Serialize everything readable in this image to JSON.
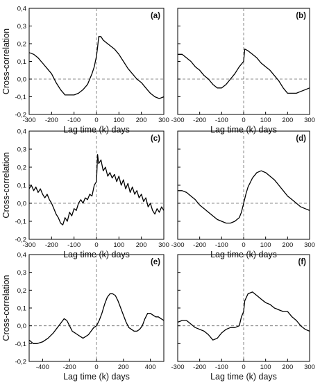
{
  "chart_data": [
    {
      "type": "line",
      "panel_label": "(a)",
      "ylabel": "Cross-correlation",
      "xlabel": "Lag time (k) days",
      "xlim": [
        -300,
        300
      ],
      "ylim": [
        -0.2,
        0.4
      ],
      "xticks": [
        "-300",
        "-200",
        "-100",
        "0",
        "100",
        "200",
        "300"
      ],
      "yticks": [
        "-0,2",
        "-0,1",
        "0,0",
        "0,1",
        "0,2",
        "0,3",
        "0,4"
      ],
      "reference_lines": {
        "x": 0,
        "y": 0,
        "style": "dashed"
      },
      "x": [
        -300,
        -280,
        -260,
        -240,
        -220,
        -200,
        -180,
        -160,
        -140,
        -120,
        -100,
        -80,
        -60,
        -40,
        -20,
        -10,
        0,
        5,
        10,
        20,
        30,
        40,
        60,
        80,
        100,
        120,
        140,
        160,
        180,
        200,
        220,
        240,
        260,
        280,
        300
      ],
      "y": [
        0.15,
        0.14,
        0.12,
        0.09,
        0.06,
        0.03,
        -0.02,
        -0.06,
        -0.09,
        -0.09,
        -0.09,
        -0.08,
        -0.06,
        -0.03,
        0.03,
        0.07,
        0.13,
        0.18,
        0.24,
        0.24,
        0.22,
        0.21,
        0.19,
        0.17,
        0.14,
        0.1,
        0.06,
        0.03,
        0.0,
        -0.02,
        -0.05,
        -0.08,
        -0.1,
        -0.11,
        -0.1
      ]
    },
    {
      "type": "line",
      "panel_label": "(b)",
      "ylabel": "",
      "xlabel": "Lag time (k) days",
      "xlim": [
        -300,
        300
      ],
      "ylim": [
        -0.2,
        0.4
      ],
      "xticks": [
        "-300",
        "-200",
        "-100",
        "0",
        "100",
        "200",
        "300"
      ],
      "yticks": [],
      "reference_lines": {
        "x": 0,
        "y": 0,
        "style": "dashed"
      },
      "x": [
        -300,
        -280,
        -260,
        -240,
        -220,
        -200,
        -180,
        -160,
        -140,
        -120,
        -100,
        -80,
        -60,
        -40,
        -20,
        0,
        5,
        20,
        40,
        60,
        80,
        100,
        120,
        140,
        160,
        180,
        200,
        220,
        240,
        260,
        280,
        300
      ],
      "y": [
        0.14,
        0.14,
        0.12,
        0.1,
        0.07,
        0.05,
        0.02,
        0.0,
        -0.03,
        -0.05,
        -0.05,
        -0.03,
        0.0,
        0.03,
        0.07,
        0.1,
        0.17,
        0.16,
        0.14,
        0.12,
        0.09,
        0.07,
        0.05,
        0.02,
        -0.01,
        -0.05,
        -0.08,
        -0.08,
        -0.08,
        -0.07,
        -0.06,
        -0.05
      ]
    },
    {
      "type": "line",
      "panel_label": "(c)",
      "ylabel": "Cross-correlation",
      "xlabel": "Lag time (k) days",
      "xlim": [
        -300,
        300
      ],
      "ylim": [
        -0.2,
        0.4
      ],
      "xticks": [
        "-300",
        "-200",
        "-100",
        "0",
        "100",
        "200",
        "300"
      ],
      "yticks": [
        "-0,2",
        "-0,1",
        "0,0",
        "0,1",
        "0,2",
        "0,3",
        "0,4"
      ],
      "reference_lines": {
        "x": 0,
        "y": 0,
        "style": "dashed"
      },
      "x": [
        -300,
        -290,
        -280,
        -270,
        -260,
        -250,
        -240,
        -230,
        -220,
        -210,
        -200,
        -190,
        -180,
        -170,
        -160,
        -150,
        -140,
        -130,
        -120,
        -110,
        -100,
        -90,
        -80,
        -70,
        -60,
        -50,
        -40,
        -30,
        -20,
        -10,
        0,
        5,
        10,
        20,
        30,
        40,
        50,
        60,
        70,
        80,
        90,
        100,
        110,
        120,
        130,
        140,
        150,
        160,
        170,
        180,
        190,
        200,
        210,
        220,
        230,
        240,
        250,
        260,
        270,
        280,
        290,
        300
      ],
      "y": [
        0.08,
        0.1,
        0.07,
        0.09,
        0.06,
        0.08,
        0.05,
        0.03,
        0.05,
        0.02,
        0.0,
        -0.03,
        -0.06,
        -0.08,
        -0.11,
        -0.12,
        -0.08,
        -0.1,
        -0.05,
        -0.07,
        -0.03,
        -0.04,
        0.0,
        0.02,
        0.0,
        0.03,
        0.02,
        0.05,
        0.04,
        0.1,
        0.12,
        0.27,
        0.22,
        0.24,
        0.18,
        0.2,
        0.15,
        0.17,
        0.14,
        0.16,
        0.12,
        0.15,
        0.1,
        0.13,
        0.08,
        0.11,
        0.06,
        0.09,
        0.05,
        0.07,
        0.03,
        0.05,
        0.01,
        0.03,
        -0.02,
        0.0,
        -0.04,
        -0.06,
        -0.03,
        -0.05,
        -0.02,
        -0.04
      ]
    },
    {
      "type": "line",
      "panel_label": "(d)",
      "ylabel": "",
      "xlabel": "Lag time (k) days",
      "xlim": [
        -300,
        300
      ],
      "ylim": [
        -0.2,
        0.4
      ],
      "xticks": [
        "-300",
        "-200",
        "-100",
        "0",
        "100",
        "200",
        "300"
      ],
      "yticks": [],
      "reference_lines": {
        "x": 0,
        "y": 0,
        "style": "dashed"
      },
      "x": [
        -300,
        -280,
        -260,
        -240,
        -220,
        -200,
        -180,
        -160,
        -140,
        -120,
        -100,
        -80,
        -60,
        -40,
        -20,
        -10,
        0,
        10,
        20,
        40,
        60,
        80,
        100,
        120,
        140,
        160,
        180,
        200,
        220,
        240,
        260,
        280,
        300
      ],
      "y": [
        0.07,
        0.07,
        0.06,
        0.04,
        0.02,
        -0.01,
        -0.03,
        -0.05,
        -0.07,
        -0.09,
        -0.1,
        -0.11,
        -0.11,
        -0.1,
        -0.08,
        -0.05,
        0.0,
        0.05,
        0.09,
        0.14,
        0.17,
        0.18,
        0.17,
        0.15,
        0.13,
        0.1,
        0.07,
        0.04,
        0.02,
        0.0,
        -0.02,
        -0.03,
        -0.04
      ]
    },
    {
      "type": "line",
      "panel_label": "(e)",
      "ylabel": "Cross-correlation",
      "xlabel": "Lag time (k) days",
      "xlim": [
        -500,
        500
      ],
      "ylim": [
        -0.2,
        0.4
      ],
      "xticks": [
        "-400",
        "-200",
        "0",
        "200",
        "400"
      ],
      "yticks": [
        "-0,2",
        "-0,1",
        "0,0",
        "0,1",
        "0,2",
        "0,3",
        "0,4"
      ],
      "reference_lines": {
        "x": 0,
        "y": 0,
        "style": "dashed"
      },
      "x": [
        -500,
        -470,
        -440,
        -400,
        -360,
        -320,
        -290,
        -260,
        -240,
        -220,
        -200,
        -180,
        -160,
        -140,
        -120,
        -100,
        -80,
        -60,
        -40,
        -20,
        0,
        20,
        40,
        60,
        80,
        100,
        120,
        140,
        160,
        180,
        200,
        220,
        240,
        260,
        280,
        300,
        320,
        340,
        360,
        380,
        400,
        420,
        440,
        460,
        480,
        500
      ],
      "y": [
        -0.08,
        -0.1,
        -0.1,
        -0.09,
        -0.07,
        -0.04,
        -0.01,
        0.02,
        0.04,
        0.03,
        0.0,
        -0.03,
        -0.04,
        -0.05,
        -0.06,
        -0.07,
        -0.06,
        -0.05,
        -0.03,
        -0.01,
        0.0,
        0.03,
        0.07,
        0.12,
        0.16,
        0.18,
        0.18,
        0.17,
        0.14,
        0.1,
        0.06,
        0.02,
        -0.01,
        -0.02,
        -0.03,
        -0.03,
        -0.02,
        0.0,
        0.04,
        0.07,
        0.07,
        0.06,
        0.05,
        0.05,
        0.04,
        0.03
      ]
    },
    {
      "type": "line",
      "panel_label": "(f)",
      "ylabel": "",
      "xlabel": "Lag time (k) days",
      "xlim": [
        -300,
        300
      ],
      "ylim": [
        -0.2,
        0.4
      ],
      "xticks": [
        "-300",
        "-200",
        "-100",
        "0",
        "100",
        "200",
        "300"
      ],
      "yticks": [],
      "reference_lines": {
        "x": 0,
        "y": 0,
        "style": "dashed"
      },
      "x": [
        -300,
        -280,
        -260,
        -240,
        -220,
        -200,
        -180,
        -160,
        -140,
        -120,
        -100,
        -80,
        -60,
        -40,
        -20,
        -10,
        0,
        5,
        20,
        40,
        60,
        80,
        100,
        120,
        140,
        160,
        180,
        200,
        220,
        240,
        260,
        280,
        300
      ],
      "y": [
        0.02,
        0.03,
        0.03,
        0.01,
        -0.01,
        -0.02,
        -0.03,
        -0.05,
        -0.08,
        -0.07,
        -0.04,
        -0.02,
        -0.01,
        -0.01,
        0.0,
        0.05,
        0.08,
        0.14,
        0.18,
        0.19,
        0.17,
        0.15,
        0.13,
        0.12,
        0.1,
        0.09,
        0.08,
        0.08,
        0.05,
        0.03,
        0.0,
        -0.02,
        -0.03
      ]
    }
  ]
}
